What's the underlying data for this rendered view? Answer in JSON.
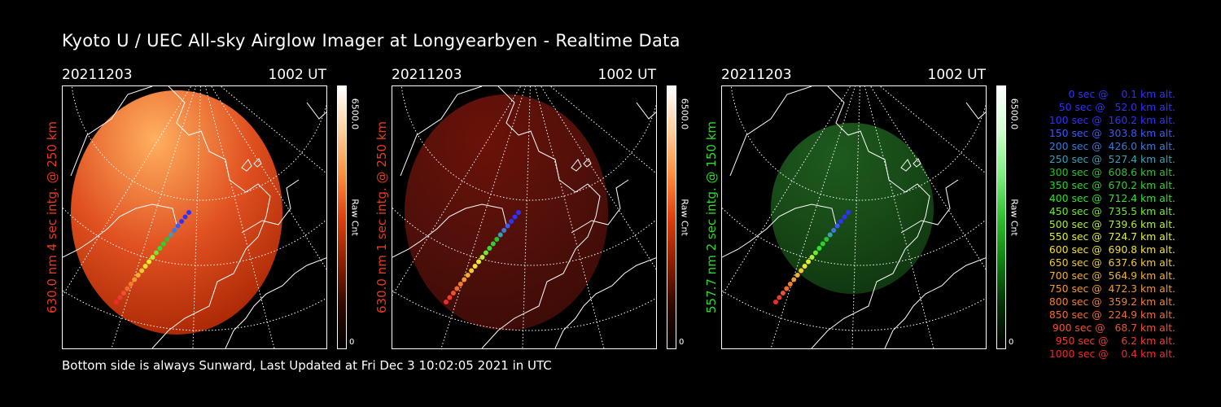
{
  "title": "Kyoto U / UEC All-sky Airglow Imager at Longyearbyen - Realtime Data",
  "footer": "Bottom side is always Sunward, Last Updated at Fri Dec  3 10:02:05 2021 in UTC",
  "panels": [
    {
      "date": "20211203",
      "time": "1002 UT",
      "label": "630.0 nm 4 sec intg. @ 250 km",
      "label_color": "#e83a1c",
      "colorbar_max": "6500.0",
      "colorbar_min": "0",
      "colorbar_unit": "Raw Cnt",
      "palette": "red-hot",
      "brightness": 1.0
    },
    {
      "date": "20211203",
      "time": "1002 UT",
      "label": "630.0 nm 1 sec intg. @ 250 km",
      "label_color": "#e83a1c",
      "colorbar_max": "6500.0",
      "colorbar_min": "0",
      "colorbar_unit": "Raw Cnt",
      "palette": "red-dim",
      "brightness": 0.35
    },
    {
      "date": "20211203",
      "time": "1002 UT",
      "label": "557.7 nm 2 sec intg. @ 150 km",
      "label_color": "#2fd82f",
      "colorbar_max": "6500.0",
      "colorbar_min": "0",
      "colorbar_unit": "Raw Cnt",
      "palette": "green",
      "brightness": 0.3
    }
  ],
  "legend": [
    {
      "text": "   0 sec @    0.1 km alt.",
      "color": "#3030ff"
    },
    {
      "text": "  50 sec @   52.0 km alt.",
      "color": "#3030ff"
    },
    {
      "text": " 100 sec @  160.2 km alt.",
      "color": "#3030ff"
    },
    {
      "text": " 150 sec @  303.8 km alt.",
      "color": "#3a5aff"
    },
    {
      "text": " 200 sec @  426.0 km alt.",
      "color": "#3a7ad8"
    },
    {
      "text": " 250 sec @  527.4 km alt.",
      "color": "#3aa0b8"
    },
    {
      "text": " 300 sec @  608.6 km alt.",
      "color": "#30c030"
    },
    {
      "text": " 350 sec @  670.2 km alt.",
      "color": "#30d030"
    },
    {
      "text": " 400 sec @  712.4 km alt.",
      "color": "#30e030"
    },
    {
      "text": " 450 sec @  735.5 km alt.",
      "color": "#70e830"
    },
    {
      "text": " 500 sec @  739.6 km alt.",
      "color": "#b0f030"
    },
    {
      "text": " 550 sec @  724.7 km alt.",
      "color": "#e0f030"
    },
    {
      "text": " 600 sec @  690.8 km alt.",
      "color": "#f0e030"
    },
    {
      "text": " 650 sec @  637.6 km alt.",
      "color": "#f0c830"
    },
    {
      "text": " 700 sec @  564.9 km alt.",
      "color": "#f0b030"
    },
    {
      "text": " 750 sec @  472.3 km alt.",
      "color": "#f09830"
    },
    {
      "text": " 800 sec @  359.2 km alt.",
      "color": "#f08030"
    },
    {
      "text": " 850 sec @  224.9 km alt.",
      "color": "#f06a30"
    },
    {
      "text": " 900 sec @   68.7 km alt.",
      "color": "#f05030"
    },
    {
      "text": " 950 sec @    6.2 km alt.",
      "color": "#f03a30"
    },
    {
      "text": "1000 sec @    0.4 km alt.",
      "color": "#f02a2a"
    }
  ]
}
